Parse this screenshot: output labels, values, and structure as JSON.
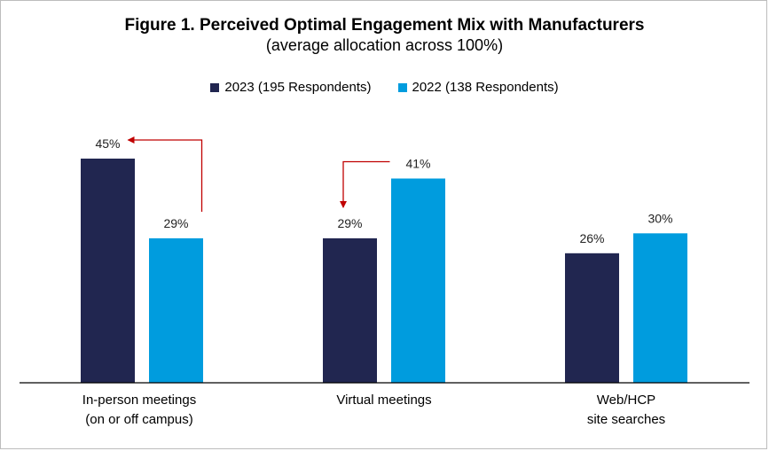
{
  "title": "Figure 1. Perceived Optimal Engagement Mix with Manufacturers",
  "subtitle": "(average allocation across 100%)",
  "chart_data": {
    "type": "bar",
    "categories": [
      "In-person meetings (on or off campus)",
      "Virtual meetings",
      "Web/HCP site searches"
    ],
    "category_lines": [
      [
        "In-person meetings",
        "(on or off campus)"
      ],
      [
        "Virtual meetings"
      ],
      [
        "Web/HCP",
        "site searches"
      ]
    ],
    "series": [
      {
        "name": "2023 (195 Respondents)",
        "values": [
          45,
          29,
          26
        ],
        "labels": [
          "45%",
          "29%",
          "26%"
        ],
        "color": "#212650"
      },
      {
        "name": "2022 (138 Respondents)",
        "values": [
          29,
          41,
          30
        ],
        "labels": [
          "29%",
          "41%",
          "30%"
        ],
        "color": "#009cde"
      }
    ],
    "ylim": [
      0,
      45
    ],
    "grid": false,
    "legend": "top-center",
    "annotations": [
      {
        "type": "arrow",
        "from_series": 1,
        "to_series": 0,
        "category": 0,
        "color": "#c00000"
      },
      {
        "type": "arrow",
        "from_series": 1,
        "to_series": 0,
        "category": 1,
        "color": "#c00000"
      }
    ]
  }
}
